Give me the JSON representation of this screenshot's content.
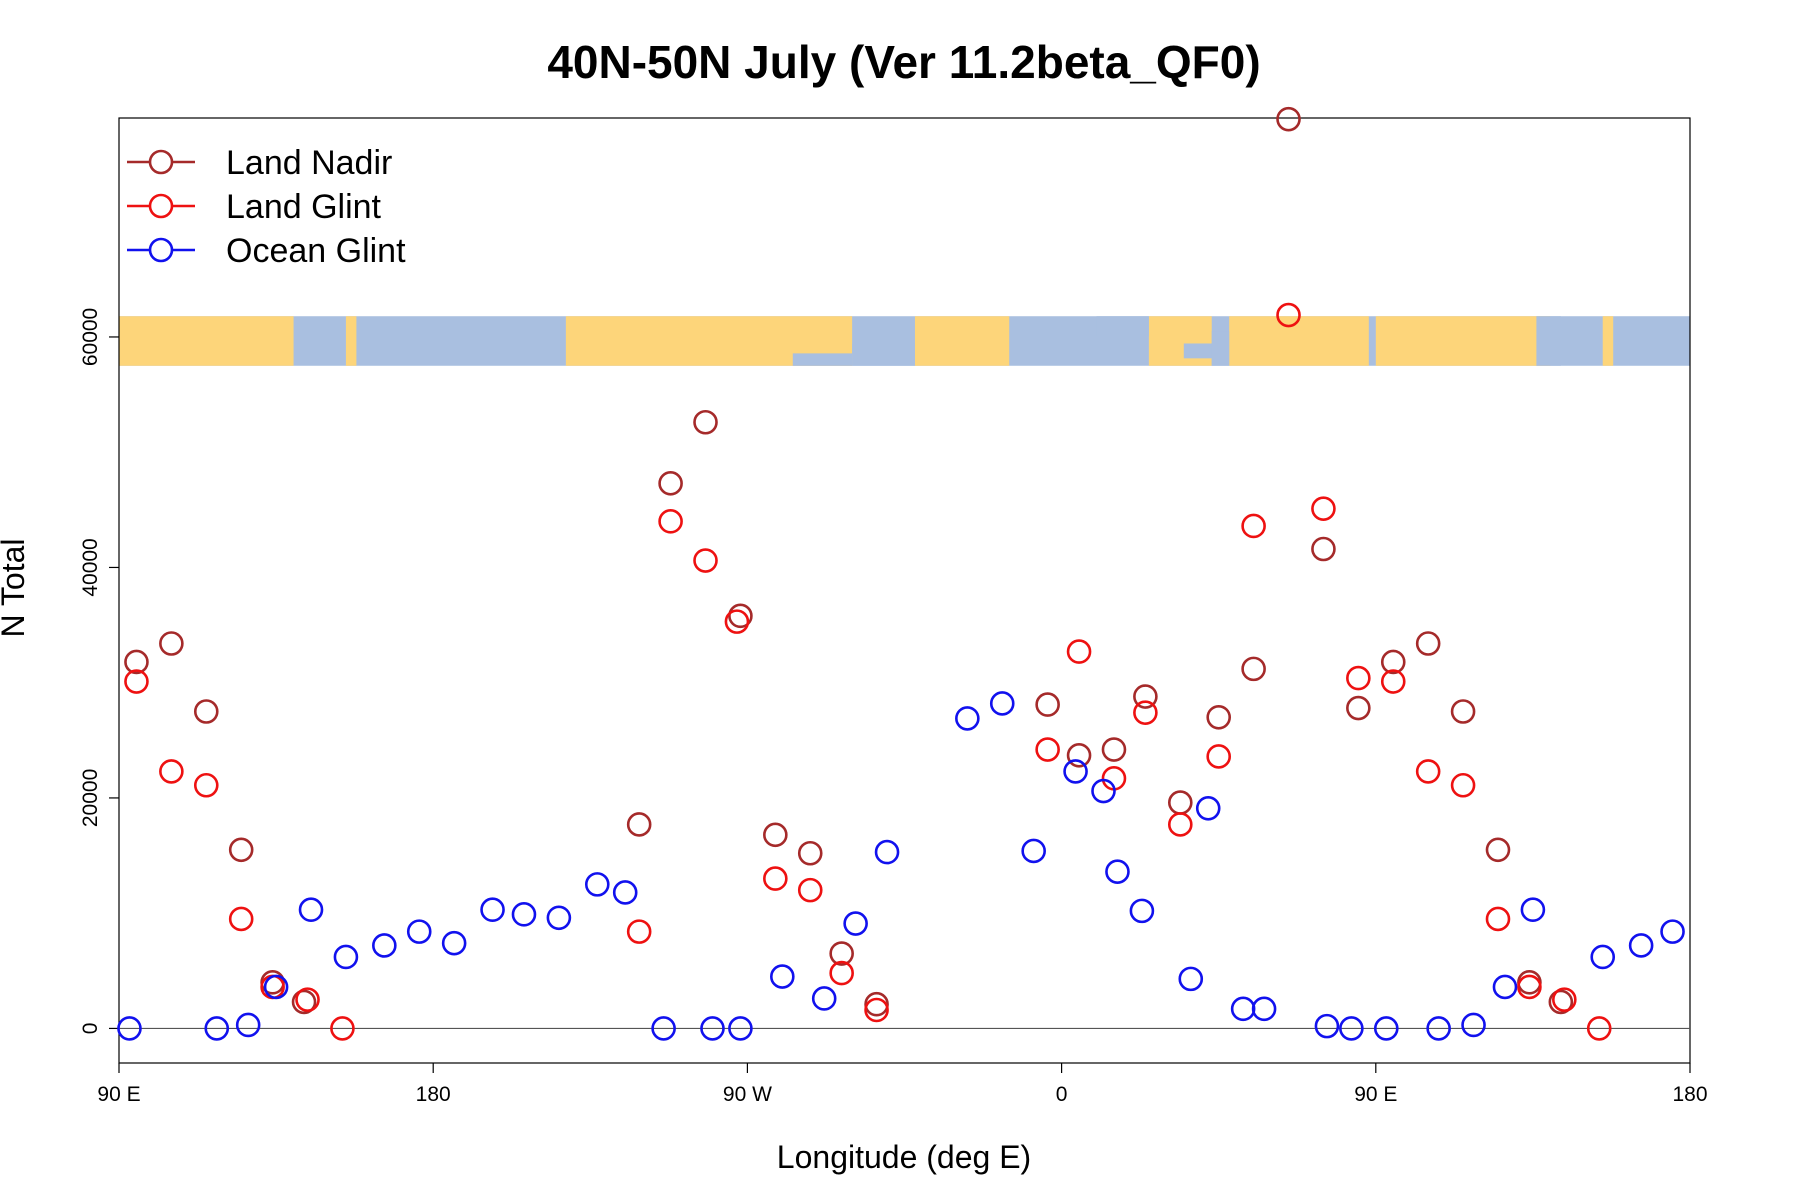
{
  "chart_data": {
    "type": "scatter",
    "title": "40N-50N July (Ver 11.2beta_QF0)",
    "xlabel": "Longitude (deg E)",
    "ylabel": "N Total",
    "xlim": [
      90,
      540
    ],
    "ylim": [
      -3000,
      79000
    ],
    "x_ticks": [
      {
        "value": 90,
        "label": "90 E"
      },
      {
        "value": 180,
        "label": "180"
      },
      {
        "value": 270,
        "label": "90 W"
      },
      {
        "value": 360,
        "label": "0"
      },
      {
        "value": 450,
        "label": "90 E"
      },
      {
        "value": 540,
        "label": "180"
      }
    ],
    "y_ticks": [
      {
        "value": 0,
        "label": "0"
      },
      {
        "value": 20000,
        "label": "20000"
      },
      {
        "value": 40000,
        "label": "40000"
      },
      {
        "value": 60000,
        "label": "60000"
      }
    ],
    "grid": false,
    "legend_position": "top-left",
    "map_strip": {
      "description_colors": {
        "land": "#fdd57a",
        "ocean": "#a9bfe0"
      },
      "y_range": [
        57500,
        61800
      ]
    },
    "series": [
      {
        "name": "Land Nadir",
        "color": "#a52a2a",
        "marker": "open-circle",
        "points": [
          [
            95,
            31800
          ],
          [
            105,
            33400
          ],
          [
            115,
            27500
          ],
          [
            125,
            15500
          ],
          [
            134,
            4000
          ],
          [
            143,
            2300
          ],
          [
            239,
            17700
          ],
          [
            248,
            47300
          ],
          [
            258,
            52600
          ],
          [
            268,
            35800
          ],
          [
            278,
            16800
          ],
          [
            288,
            15200
          ],
          [
            297,
            6500
          ],
          [
            307,
            2100
          ],
          [
            356,
            28100
          ],
          [
            365,
            23700
          ],
          [
            375,
            24200
          ],
          [
            384,
            28800
          ],
          [
            394,
            19600
          ],
          [
            405,
            27000
          ],
          [
            415,
            31200
          ],
          [
            425,
            78900
          ],
          [
            435,
            41600
          ],
          [
            445,
            27800
          ],
          [
            455,
            31800
          ],
          [
            465,
            33400
          ],
          [
            475,
            27500
          ],
          [
            485,
            15500
          ],
          [
            494,
            4000
          ],
          [
            503,
            2300
          ]
        ]
      },
      {
        "name": "Land Glint",
        "color": "#ee1111",
        "marker": "open-circle",
        "points": [
          [
            95,
            30100
          ],
          [
            105,
            22300
          ],
          [
            115,
            21100
          ],
          [
            125,
            9500
          ],
          [
            134,
            3600
          ],
          [
            144,
            2500
          ],
          [
            154,
            0
          ],
          [
            239,
            8400
          ],
          [
            248,
            44000
          ],
          [
            258,
            40600
          ],
          [
            267,
            35300
          ],
          [
            278,
            13000
          ],
          [
            288,
            12000
          ],
          [
            297,
            4800
          ],
          [
            307,
            1600
          ],
          [
            356,
            24200
          ],
          [
            365,
            32700
          ],
          [
            375,
            21700
          ],
          [
            384,
            27400
          ],
          [
            394,
            17700
          ],
          [
            405,
            23600
          ],
          [
            415,
            43600
          ],
          [
            425,
            61900
          ],
          [
            435,
            45100
          ],
          [
            445,
            30400
          ],
          [
            455,
            30100
          ],
          [
            465,
            22300
          ],
          [
            475,
            21100
          ],
          [
            485,
            9500
          ],
          [
            494,
            3600
          ],
          [
            504,
            2500
          ],
          [
            514,
            0
          ]
        ]
      },
      {
        "name": "Ocean Glint",
        "color": "#1111ee",
        "marker": "open-circle",
        "points": [
          [
            93,
            0
          ],
          [
            118,
            0
          ],
          [
            127,
            300
          ],
          [
            135,
            3600
          ],
          [
            145,
            10300
          ],
          [
            155,
            6200
          ],
          [
            166,
            7200
          ],
          [
            176,
            8400
          ],
          [
            186,
            7400
          ],
          [
            197,
            10300
          ],
          [
            206,
            9900
          ],
          [
            216,
            9600
          ],
          [
            227,
            12500
          ],
          [
            235,
            11800
          ],
          [
            246,
            0
          ],
          [
            260,
            0
          ],
          [
            268,
            0
          ],
          [
            280,
            4500
          ],
          [
            292,
            2600
          ],
          [
            301,
            9100
          ],
          [
            310,
            15300
          ],
          [
            333,
            26900
          ],
          [
            343,
            28200
          ],
          [
            352,
            15400
          ],
          [
            364,
            22300
          ],
          [
            372,
            20600
          ],
          [
            376,
            13600
          ],
          [
            383,
            10200
          ],
          [
            397,
            4300
          ],
          [
            402,
            19100
          ],
          [
            412,
            1700
          ],
          [
            418,
            1700
          ],
          [
            436,
            200
          ],
          [
            443,
            0
          ],
          [
            453,
            0
          ],
          [
            468,
            0
          ],
          [
            478,
            300
          ],
          [
            487,
            3600
          ],
          [
            495,
            10300
          ],
          [
            515,
            6200
          ],
          [
            526,
            7200
          ],
          [
            535,
            8400
          ]
        ]
      }
    ]
  }
}
